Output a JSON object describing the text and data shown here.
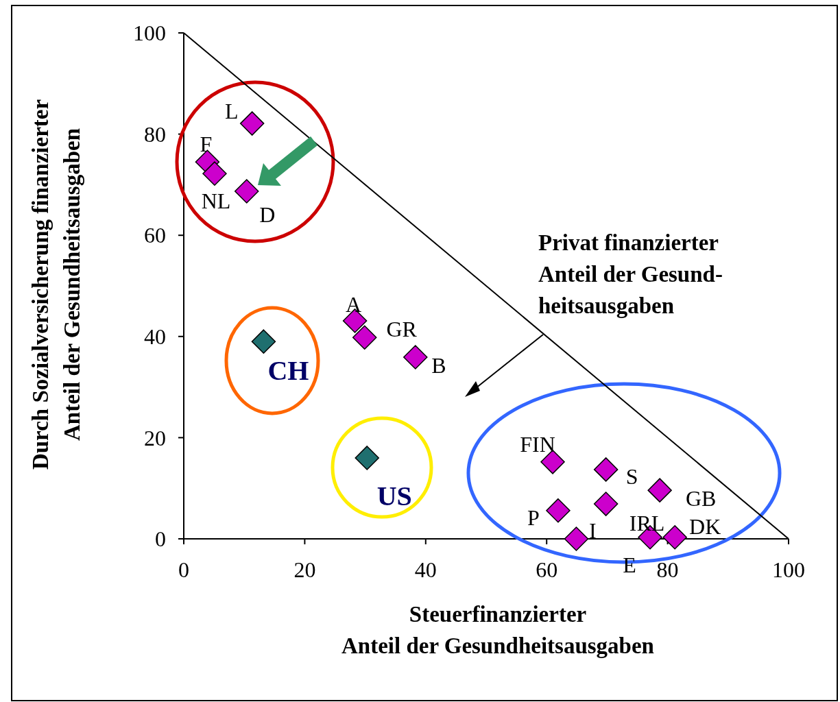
{
  "chart_data": {
    "type": "scatter",
    "xlabel": "Steuerfinanzierter\nAnteil der Gesundheitsausgaben",
    "ylabel": "Durch Sozialversicherung finanzierter\nAnteil der Gesundheitsausgaben",
    "xlim": [
      0,
      100
    ],
    "ylim": [
      0,
      100
    ],
    "xticks": [
      0,
      20,
      40,
      60,
      80,
      100
    ],
    "yticks": [
      0,
      20,
      40,
      60,
      80,
      100
    ],
    "marker": "diamond",
    "series": [
      {
        "color": "#cc00cc",
        "x": [
          11.3,
          3.9,
          5.1,
          10.4,
          28.3,
          29.9,
          38.3,
          61.0,
          69.8,
          78.7,
          61.9,
          69.8,
          64.9,
          77.1,
          81.2
        ],
        "values": [
          82.1,
          74.5,
          72.2,
          68.7,
          43.1,
          39.8,
          35.9,
          15.2,
          13.7,
          9.6,
          5.6,
          6.9,
          0,
          0.3,
          0.3
        ]
      },
      {
        "color": "#1f6f6f",
        "x": [
          13.2,
          30.3
        ],
        "values": [
          39.0,
          16.0
        ]
      },
      {
        "type": "line",
        "color": "#000000",
        "x": [
          0,
          100
        ],
        "values": [
          100,
          0
        ],
        "marker": "none"
      }
    ],
    "annotations": [
      {
        "text": "L",
        "x": 11.3,
        "y": 82.1
      },
      {
        "text": "F",
        "x": 3.9,
        "y": 74.5
      },
      {
        "text": "NL",
        "x": 5.1,
        "y": 72.2
      },
      {
        "text": "D",
        "x": 10.4,
        "y": 68.7
      },
      {
        "text": "A",
        "x": 28.3,
        "y": 43.1
      },
      {
        "text": "GR",
        "x": 29.9,
        "y": 39.8
      },
      {
        "text": "B",
        "x": 38.3,
        "y": 35.9
      },
      {
        "text": "FIN",
        "x": 61.0,
        "y": 15.2
      },
      {
        "text": "S",
        "x": 69.8,
        "y": 13.7
      },
      {
        "text": "GB",
        "x": 78.7,
        "y": 9.6
      },
      {
        "text": "P",
        "x": 61.9,
        "y": 5.6
      },
      {
        "text": "IRL",
        "x": 69.8,
        "y": 6.9
      },
      {
        "text": "I",
        "x": 64.9,
        "y": 0
      },
      {
        "text": "E",
        "x": 77.1,
        "y": 0.3
      },
      {
        "text": "DK",
        "x": 81.2,
        "y": 0.3
      },
      {
        "text": "CH",
        "x": 13.2,
        "y": 39.0
      },
      {
        "text": "US",
        "x": 30.3,
        "y": 16.0
      },
      "Privat finanzierter\nAnteil der Gesund-\nheitsausgaben"
    ]
  }
}
